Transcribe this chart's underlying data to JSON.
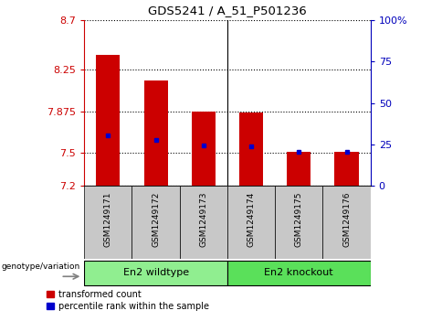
{
  "title": "GDS5241 / A_51_P501236",
  "samples": [
    "GSM1249171",
    "GSM1249172",
    "GSM1249173",
    "GSM1249174",
    "GSM1249175",
    "GSM1249176"
  ],
  "bar_bottoms": [
    7.2,
    7.2,
    7.2,
    7.2,
    7.2,
    7.2
  ],
  "bar_tops": [
    8.38,
    8.15,
    7.875,
    7.865,
    7.505,
    7.505
  ],
  "percentile_values_left": [
    7.655,
    7.615,
    7.565,
    7.555,
    7.51,
    7.51
  ],
  "ylim_left": [
    7.2,
    8.7
  ],
  "ylim_right": [
    0,
    100
  ],
  "yticks_left": [
    7.2,
    7.5,
    7.875,
    8.25,
    8.7
  ],
  "ytick_labels_left": [
    "7.2",
    "7.5",
    "7.875",
    "8.25",
    "8.7"
  ],
  "yticks_right": [
    0,
    25,
    50,
    75,
    100
  ],
  "ytick_labels_right": [
    "0",
    "25",
    "50",
    "75",
    "100%"
  ],
  "group_labels": [
    "En2 wildtype",
    "En2 knockout"
  ],
  "group_sample_counts": [
    3,
    3
  ],
  "group_colors": [
    "#90EE90",
    "#5AE05A"
  ],
  "legend_items": [
    "transformed count",
    "percentile rank within the sample"
  ],
  "legend_colors": [
    "#CC0000",
    "#0000CC"
  ],
  "bar_color": "#CC0000",
  "marker_color": "#0000CC",
  "bg_color_plot": "#ffffff",
  "bg_color_label": "#C8C8C8",
  "title_color": "#000000",
  "left_axis_color": "#CC0000",
  "right_axis_color": "#0000BB"
}
